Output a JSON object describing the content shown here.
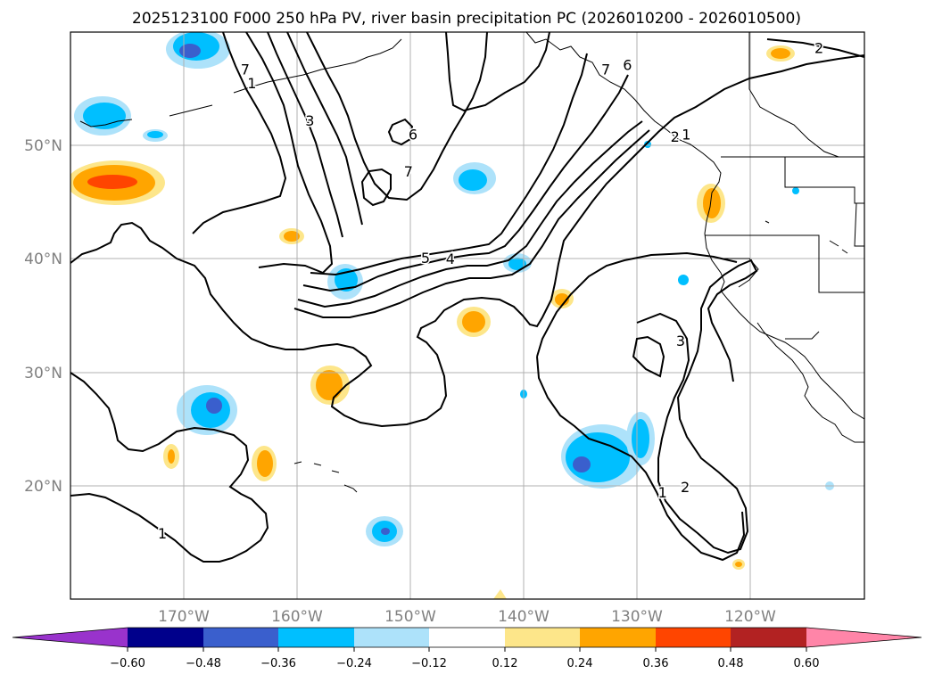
{
  "chart_data": {
    "type": "contour-map",
    "title": "2025123100 F000 250 hPa PV, river basin precipitation PC (2026010200 - 2026010500)",
    "lon_range": [
      -180,
      -110
    ],
    "lat_range": [
      10,
      60
    ],
    "lon_ticks": [
      -170,
      -160,
      -150,
      -140,
      -130,
      -120
    ],
    "lon_tick_labels": [
      "170°W",
      "160°W",
      "150°W",
      "140°W",
      "130°W",
      "120°W"
    ],
    "lat_ticks": [
      20,
      30,
      40,
      50
    ],
    "lat_tick_labels": [
      "20°N",
      "30°N",
      "40°N",
      "50°N"
    ],
    "grid": true,
    "pv_contour_labels": [
      {
        "text": "1",
        "lon": -164,
        "lat": 55.4
      },
      {
        "text": "3",
        "lon": -158.9,
        "lat": 52.1
      },
      {
        "text": "7",
        "lon": -164.6,
        "lat": 56.6
      },
      {
        "text": "6",
        "lon": -149.8,
        "lat": 50.9
      },
      {
        "text": "7",
        "lon": -150.2,
        "lat": 47.6
      },
      {
        "text": "5",
        "lon": -148.7,
        "lat": 40
      },
      {
        "text": "4",
        "lon": -146.5,
        "lat": 39.9
      },
      {
        "text": "7",
        "lon": -132.8,
        "lat": 56.6
      },
      {
        "text": "6",
        "lon": -130.9,
        "lat": 57
      },
      {
        "text": "2",
        "lon": -126.7,
        "lat": 50.7
      },
      {
        "text": "1",
        "lon": -125.7,
        "lat": 50.9
      },
      {
        "text": "2",
        "lon": -114,
        "lat": 58.5
      },
      {
        "text": "3",
        "lon": -126.2,
        "lat": 32.7
      },
      {
        "text": "1",
        "lon": -127.8,
        "lat": 19.3
      },
      {
        "text": "2",
        "lon": -125.8,
        "lat": 19.8
      },
      {
        "text": "1",
        "lon": -171.9,
        "lat": 15.7
      }
    ],
    "colorbar": {
      "tick_labels": [
        "−0.60",
        "−0.48",
        "−0.36",
        "−0.24",
        "−0.12",
        "0.12",
        "0.24",
        "0.36",
        "0.48",
        "0.60"
      ],
      "colors": [
        "#9933cc",
        "#00008b",
        "#3a5fcd",
        "#00bfff",
        "#ade2fa",
        "#ffffff",
        "#fde68a",
        "#ffa500",
        "#ff4500",
        "#b22222",
        "#ff85a8"
      ],
      "extend": "both"
    }
  }
}
